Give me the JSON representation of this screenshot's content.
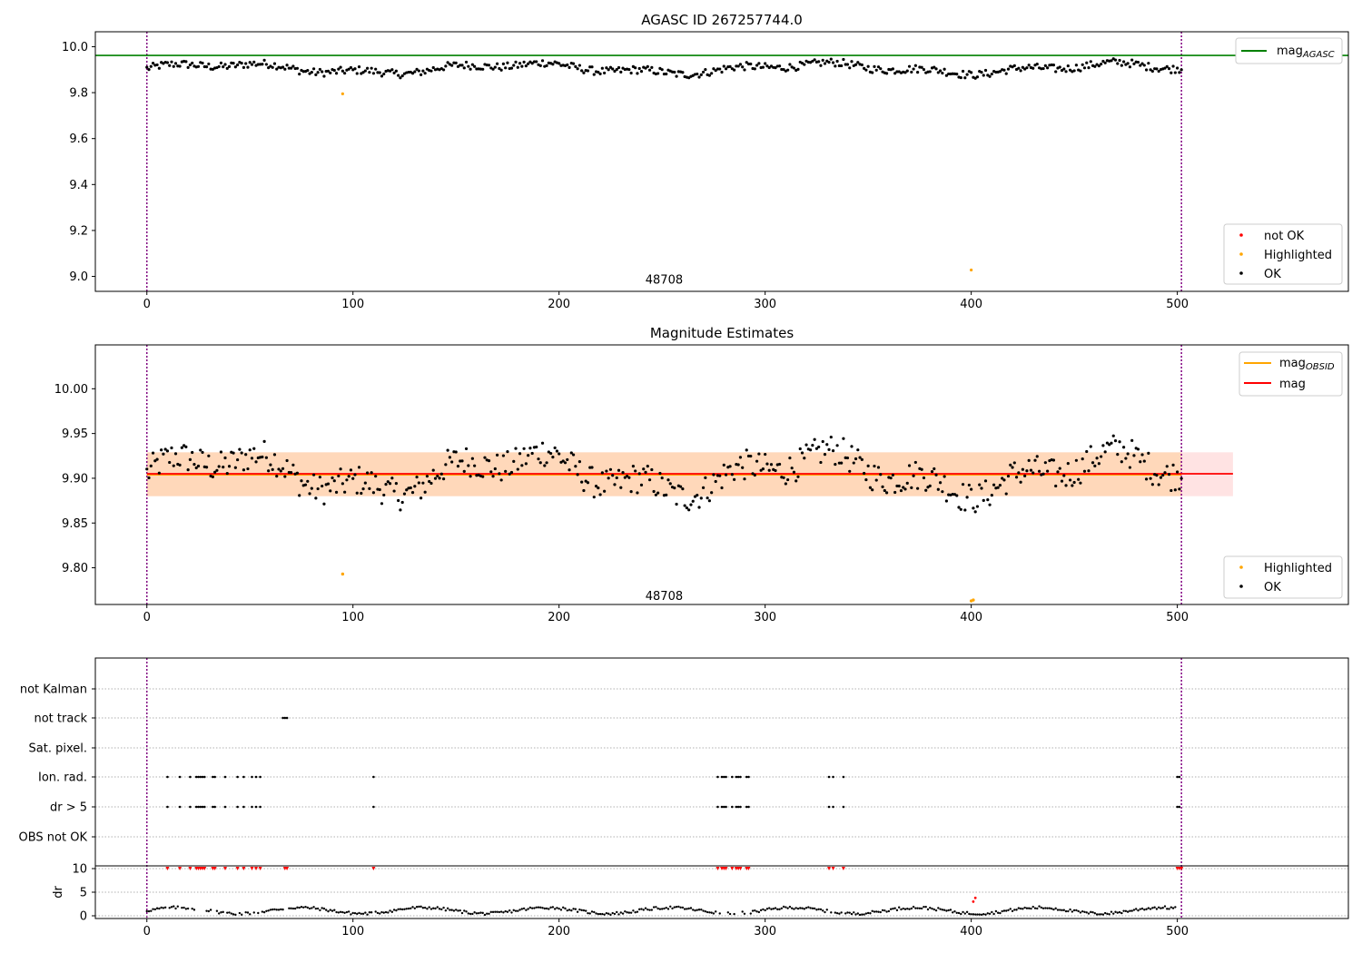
{
  "chart_data": [
    {
      "type": "scatter",
      "title": "AGASC ID 267257744.0",
      "xlabel": "",
      "ylabel": "",
      "xlim": [
        -25,
        583
      ],
      "ylim": [
        8.935,
        10.065
      ],
      "x_ticks": [
        0,
        100,
        200,
        300,
        400,
        500
      ],
      "y_ticks": [
        9.0,
        9.2,
        9.4,
        9.6,
        9.8,
        10.0
      ],
      "vlines": [
        0,
        502
      ],
      "hline": {
        "name": "mag",
        "name_sub": "AGASC",
        "y": 9.962,
        "color": "#008000"
      },
      "annotation": {
        "text": "48708",
        "x": 251,
        "y": 8.985
      },
      "series": [
        {
          "name": "not OK",
          "color": "#ff0000",
          "points": []
        },
        {
          "name": "Highlighted",
          "color": "#ffa500",
          "points": [
            [
              95,
              9.795
            ],
            [
              400,
              9.028
            ]
          ]
        },
        {
          "name": "OK",
          "color": "#000000",
          "base": 9.905,
          "amplitude": 0.042,
          "x_range": [
            0,
            502
          ],
          "n": 503
        }
      ],
      "legend_top": {
        "entries": [
          {
            "name": "mag",
            "sub": "AGASC",
            "color": "#008000"
          }
        ],
        "placement": "upper right"
      },
      "legend_bottom": {
        "placement": "lower right"
      }
    },
    {
      "type": "scatter",
      "title": "Magnitude Estimates",
      "xlabel": "",
      "ylabel": "",
      "xlim": [
        -25,
        583
      ],
      "ylim": [
        9.759,
        10.049
      ],
      "x_ticks": [
        0,
        100,
        200,
        300,
        400,
        500
      ],
      "y_ticks": [
        9.8,
        9.85,
        9.9,
        9.95,
        10.0
      ],
      "vlines": [
        0,
        502
      ],
      "mag_obsid": {
        "name": "mag",
        "sub": "OBSID",
        "y": 9.904,
        "band": [
          9.88,
          9.929
        ],
        "x_range": [
          0,
          502
        ],
        "color": "#ffa500"
      },
      "mag": {
        "name": "mag",
        "y": 9.905,
        "band": [
          9.88,
          9.929
        ],
        "x_range": [
          0,
          527
        ],
        "color": "#ff0000"
      },
      "annotation": {
        "text": "48708",
        "x": 251,
        "y": 9.768
      },
      "series": [
        {
          "name": "Highlighted",
          "color": "#ffa500",
          "points": [
            [
              95,
              9.793
            ],
            [
              400,
              9.763
            ],
            [
              401,
              9.764
            ]
          ]
        },
        {
          "name": "OK",
          "color": "#000000",
          "base": 9.905,
          "amplitude": 0.042,
          "x_range": [
            0,
            502
          ],
          "n": 503
        }
      ],
      "legend_top": {
        "placement": "upper right"
      },
      "legend_bottom": {
        "placement": "lower right"
      }
    },
    {
      "type": "scatter",
      "title": "",
      "xlabel": "",
      "ylabel": "",
      "xlim": [
        -25,
        583
      ],
      "x_ticks": [
        0,
        100,
        200,
        300,
        400,
        500
      ],
      "vlines": [
        0,
        502
      ],
      "flag_categories": [
        "not Kalman",
        "not track",
        "Sat. pixel.",
        "Ion. rad.",
        "dr > 5",
        "OBS not OK"
      ],
      "flags": {
        "not Kalman": [],
        "not track": [
          66,
          67,
          68
        ],
        "Sat. pixel.": [],
        "Ion. rad.": [
          10,
          16,
          21,
          24,
          25,
          26,
          27,
          28,
          32,
          33,
          38,
          44,
          47,
          51,
          53,
          55,
          110,
          277,
          279,
          280,
          281,
          284,
          286,
          287,
          288,
          291,
          292,
          331,
          333,
          338,
          500,
          501
        ],
        "dr > 5": [
          10,
          16,
          21,
          24,
          25,
          26,
          27,
          28,
          32,
          33,
          38,
          44,
          47,
          51,
          53,
          55,
          110,
          277,
          279,
          280,
          281,
          284,
          286,
          287,
          288,
          291,
          292,
          331,
          333,
          338,
          500,
          501
        ],
        "OBS not OK": []
      },
      "dr_panel": {
        "ylabel": "dr",
        "ylim": [
          0,
          10
        ],
        "y_ticks": [
          0,
          5,
          10
        ],
        "clipped_x": [
          10,
          16,
          21,
          24,
          25,
          26,
          27,
          28,
          32,
          33,
          38,
          44,
          47,
          51,
          53,
          55,
          67,
          68,
          110,
          277,
          279,
          280,
          281,
          284,
          286,
          287,
          288,
          291,
          292,
          331,
          333,
          338,
          500,
          501,
          502
        ],
        "red_points": [
          [
            401,
            3.0
          ],
          [
            402,
            3.8
          ]
        ],
        "base": 1.1,
        "amplitude": 0.9
      }
    }
  ]
}
